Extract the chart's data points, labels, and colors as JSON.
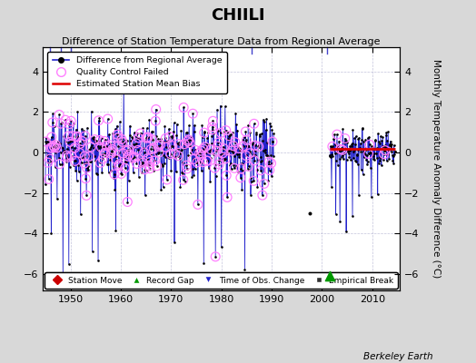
{
  "title": "CHIILI",
  "subtitle": "Difference of Station Temperature Data from Regional Average",
  "ylabel": "Monthly Temperature Anomaly Difference (°C)",
  "xlabel_bottom": "Berkeley Earth",
  "xlim": [
    1944.5,
    2015.5
  ],
  "ylim": [
    -6.8,
    5.2
  ],
  "yticks": [
    -6,
    -4,
    -2,
    0,
    2,
    4
  ],
  "xticks": [
    1950,
    1960,
    1970,
    1980,
    1990,
    2000,
    2010
  ],
  "bg_color": "#d8d8d8",
  "plot_bg_color": "#ffffff",
  "grid_color": "#aaaacc",
  "main_line_color": "#2222cc",
  "main_dot_color": "#000000",
  "qc_circle_color": "#ff80ff",
  "bias_line_color": "#dd0000",
  "bias_start": 2001.5,
  "bias_end": 2014.5,
  "bias_value": 0.18,
  "record_gap_x": 2001.5,
  "record_gap_y": -6.1,
  "top_ticks": [
    1946,
    1948,
    1950,
    1986,
    2001
  ],
  "seg1_start": 1945.0,
  "seg1_end": 1990.5,
  "seg2_start": 2001.5,
  "seg2_end": 2014.6,
  "lone_dot_x": 1997.5,
  "lone_dot_y": -3.0
}
